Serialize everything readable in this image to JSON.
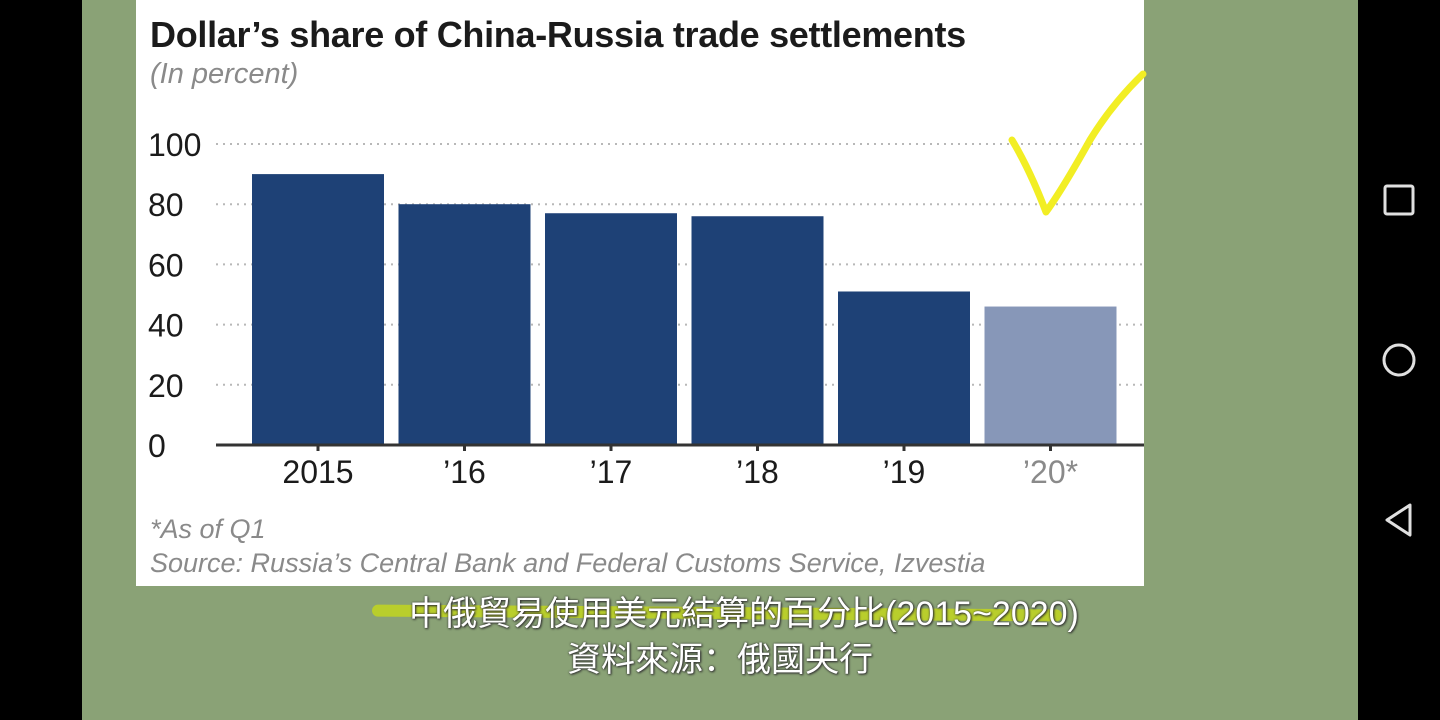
{
  "chart_data": {
    "type": "bar",
    "title": "Dollar’s share of China-Russia trade settlements",
    "subtitle": "(In percent)",
    "categories": [
      "2015",
      "’16",
      "’17",
      "’18",
      "’19",
      "’20*"
    ],
    "values": [
      90,
      80,
      77,
      76,
      51,
      46
    ],
    "ylim": [
      0,
      100
    ],
    "yticks": [
      "0",
      "20",
      "40",
      "60",
      "80",
      "100"
    ],
    "grid": "dotted horizontal",
    "bar_color": "#1e4176",
    "highlight_bar_color": "#8797b8",
    "highlight_index": 5,
    "footnote": "*As of Q1",
    "source": "Source: Russia’s Central Bank and Federal Customs Service, Izvestia"
  },
  "captions": {
    "line1": "中俄貿易使用美元結算的百分比(2015~2020)",
    "line2": "資料來源：俄國央行"
  },
  "annotation": {
    "checkmark_color": "#f2ee24"
  },
  "nav": {
    "recents_icon": "square-icon",
    "home_icon": "circle-icon",
    "back_icon": "triangle-back-icon"
  }
}
